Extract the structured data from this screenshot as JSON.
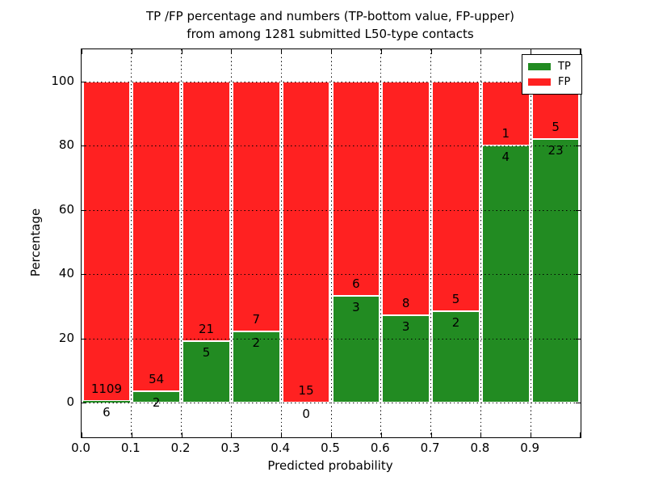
{
  "figure": {
    "title_line1": "TP /FP percentage and numbers (TP-bottom value, FP-upper)",
    "title_line2": "from among 1281 submitted L50-type contacts"
  },
  "chart_data": {
    "type": "bar",
    "stacked": true,
    "title": "TP /FP percentage and numbers (TP-bottom value, FP-upper) from among 1281 submitted L50-type contacts",
    "xlabel": "Predicted probability",
    "ylabel": "Percentage",
    "xlim": [
      0.0,
      1.0
    ],
    "ylim": [
      -11,
      110
    ],
    "grid": true,
    "x_tick_labels": [
      "0.0",
      "0.1",
      "0.2",
      "0.3",
      "0.4",
      "0.5",
      "0.6",
      "0.7",
      "0.8",
      "0.9"
    ],
    "y_tick_values": [
      0,
      20,
      40,
      60,
      80,
      100
    ],
    "y_tick_labels": [
      "0",
      "20",
      "40",
      "60",
      "80",
      "100"
    ],
    "total_contacts": 1281,
    "colors": {
      "tp": "#228B22",
      "fp": "#FF2121",
      "bar_edge": "#ffffff"
    },
    "legend": {
      "position": "upper right",
      "entries": [
        {
          "label": "TP",
          "color": "#228B22"
        },
        {
          "label": "FP",
          "color": "#FF2121"
        }
      ]
    },
    "bins": [
      {
        "x_start": 0.0,
        "x_end": 0.1,
        "tp": 6,
        "fp": 1109,
        "tp_pct": 0.54,
        "fp_pct": 99.46
      },
      {
        "x_start": 0.1,
        "x_end": 0.2,
        "tp": 2,
        "fp": 54,
        "tp_pct": 3.57,
        "fp_pct": 96.43
      },
      {
        "x_start": 0.2,
        "x_end": 0.3,
        "tp": 5,
        "fp": 21,
        "tp_pct": 19.23,
        "fp_pct": 80.77
      },
      {
        "x_start": 0.3,
        "x_end": 0.4,
        "tp": 2,
        "fp": 7,
        "tp_pct": 22.22,
        "fp_pct": 77.78
      },
      {
        "x_start": 0.4,
        "x_end": 0.5,
        "tp": 0,
        "fp": 15,
        "tp_pct": 0.0,
        "fp_pct": 100.0
      },
      {
        "x_start": 0.5,
        "x_end": 0.6,
        "tp": 3,
        "fp": 6,
        "tp_pct": 33.33,
        "fp_pct": 66.67
      },
      {
        "x_start": 0.6,
        "x_end": 0.7,
        "tp": 3,
        "fp": 8,
        "tp_pct": 27.27,
        "fp_pct": 72.73
      },
      {
        "x_start": 0.7,
        "x_end": 0.8,
        "tp": 2,
        "fp": 5,
        "tp_pct": 28.57,
        "fp_pct": 71.43
      },
      {
        "x_start": 0.8,
        "x_end": 0.9,
        "tp": 4,
        "fp": 1,
        "tp_pct": 80.0,
        "fp_pct": 20.0
      },
      {
        "x_start": 0.9,
        "x_end": 1.0,
        "tp": 23,
        "fp": 5,
        "tp_pct": 82.14,
        "fp_pct": 17.86
      }
    ]
  }
}
